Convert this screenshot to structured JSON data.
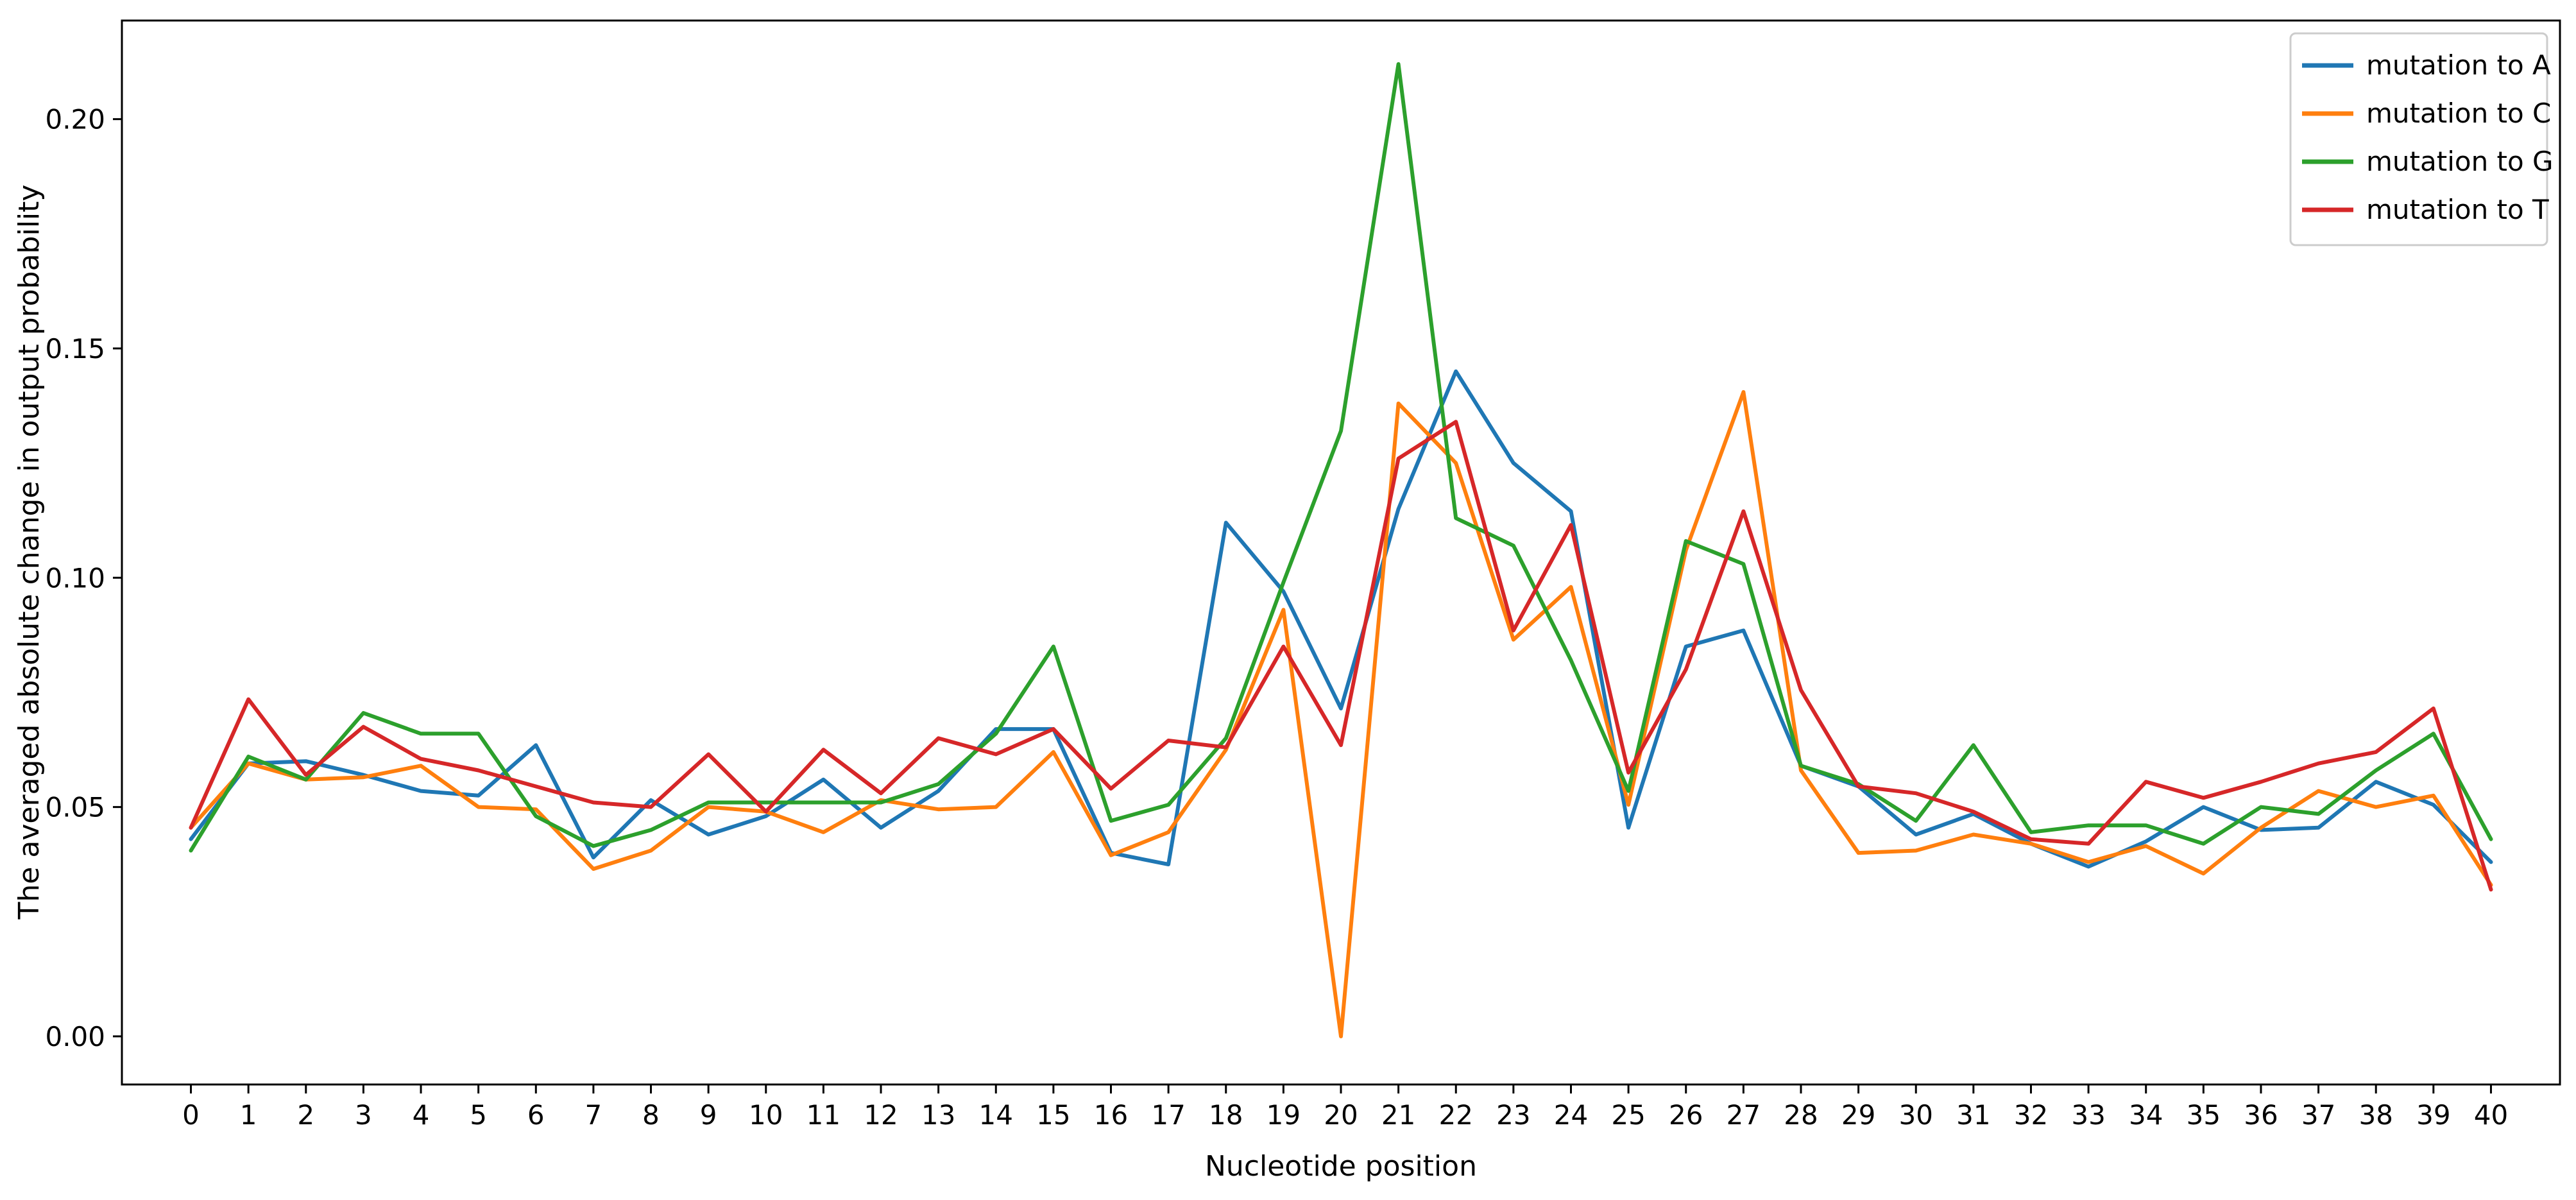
{
  "chart_data": {
    "type": "line",
    "title": "",
    "xlabel": "Nucleotide position",
    "ylabel": "The averaged absolute change in output probability",
    "x": [
      0,
      1,
      2,
      3,
      4,
      5,
      6,
      7,
      8,
      9,
      10,
      11,
      12,
      13,
      14,
      15,
      16,
      17,
      18,
      19,
      20,
      21,
      22,
      23,
      24,
      25,
      26,
      27,
      28,
      29,
      30,
      31,
      32,
      33,
      34,
      35,
      36,
      37,
      38,
      39,
      40
    ],
    "xlim": [
      -1.2,
      41.2
    ],
    "ylim": [
      -0.0105,
      0.2215
    ],
    "yticks": [
      "0.00",
      "0.05",
      "0.10",
      "0.15",
      "0.20"
    ],
    "grid": false,
    "legend_position": "top-right",
    "series": [
      {
        "name": "mutation to A",
        "color": "#1f77b4",
        "values": [
          0.043,
          0.0595,
          0.06,
          0.057,
          0.0535,
          0.0525,
          0.0635,
          0.039,
          0.0515,
          0.044,
          0.048,
          0.056,
          0.0455,
          0.0535,
          0.067,
          0.067,
          0.04,
          0.0375,
          0.112,
          0.097,
          0.0715,
          0.115,
          0.145,
          0.125,
          0.1145,
          0.0455,
          0.085,
          0.0885,
          0.059,
          0.0545,
          0.044,
          0.0485,
          0.042,
          0.037,
          0.0425,
          0.05,
          0.045,
          0.0455,
          0.0555,
          0.0505,
          0.038
        ]
      },
      {
        "name": "mutation to C",
        "color": "#ff7f0e",
        "values": [
          0.0455,
          0.0595,
          0.056,
          0.0565,
          0.059,
          0.05,
          0.0495,
          0.0365,
          0.0405,
          0.05,
          0.049,
          0.0445,
          0.0515,
          0.0495,
          0.05,
          0.062,
          0.0395,
          0.0445,
          0.0625,
          0.093,
          0.0,
          0.138,
          0.125,
          0.0865,
          0.098,
          0.0505,
          0.106,
          0.1405,
          0.058,
          0.04,
          0.0405,
          0.044,
          0.042,
          0.038,
          0.0415,
          0.0355,
          0.0455,
          0.0535,
          0.05,
          0.0525,
          0.033
        ]
      },
      {
        "name": "mutation to G",
        "color": "#2ca02c",
        "values": [
          0.0405,
          0.061,
          0.056,
          0.0705,
          0.066,
          0.066,
          0.048,
          0.0415,
          0.045,
          0.051,
          0.051,
          0.051,
          0.051,
          0.055,
          0.066,
          0.085,
          0.047,
          0.0505,
          0.065,
          0.099,
          0.132,
          0.212,
          0.113,
          0.107,
          0.082,
          0.0535,
          0.108,
          0.103,
          0.059,
          0.055,
          0.047,
          0.0635,
          0.0445,
          0.046,
          0.046,
          0.042,
          0.05,
          0.0485,
          0.058,
          0.066,
          0.043
        ]
      },
      {
        "name": "mutation to T",
        "color": "#d62728",
        "values": [
          0.0455,
          0.0735,
          0.057,
          0.0675,
          0.0605,
          0.058,
          0.0545,
          0.051,
          0.05,
          0.0615,
          0.049,
          0.0625,
          0.053,
          0.065,
          0.0615,
          0.067,
          0.054,
          0.0645,
          0.063,
          0.085,
          0.0635,
          0.126,
          0.134,
          0.0885,
          0.1115,
          0.0575,
          0.08,
          0.1145,
          0.0755,
          0.0545,
          0.053,
          0.049,
          0.043,
          0.042,
          0.0555,
          0.052,
          0.0555,
          0.0595,
          0.062,
          0.0715,
          0.032
        ]
      }
    ]
  }
}
